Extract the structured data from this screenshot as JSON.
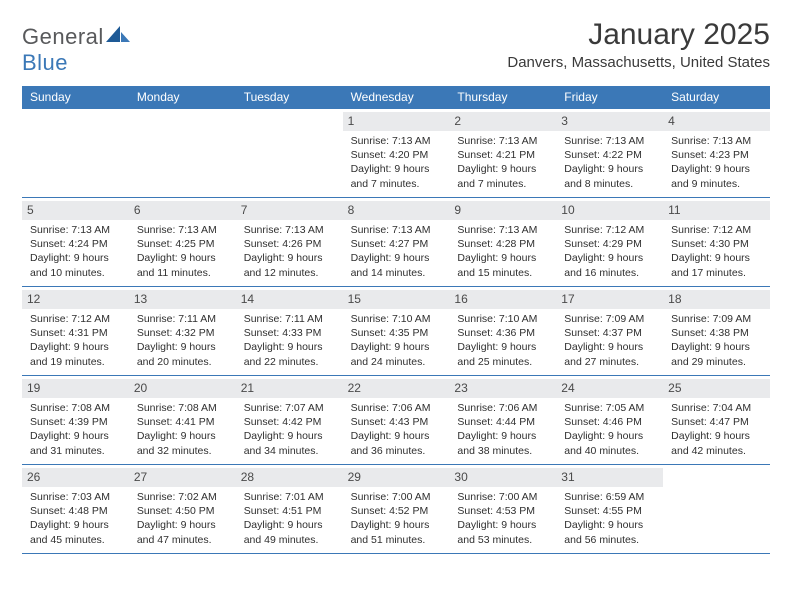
{
  "logo": {
    "text_general": "General",
    "text_blue": "Blue"
  },
  "title": "January 2025",
  "location": "Danvers, Massachusetts, United States",
  "colors": {
    "header_bg": "#3b78b7",
    "header_fg": "#ffffff",
    "daynum_bg": "#e9eaec",
    "text": "#333333",
    "rule": "#3b78b7"
  },
  "days_of_week": [
    "Sunday",
    "Monday",
    "Tuesday",
    "Wednesday",
    "Thursday",
    "Friday",
    "Saturday"
  ],
  "weeks": [
    [
      null,
      null,
      null,
      {
        "n": "1",
        "sr": "7:13 AM",
        "ss": "4:20 PM",
        "dl": "9 hours and 7 minutes."
      },
      {
        "n": "2",
        "sr": "7:13 AM",
        "ss": "4:21 PM",
        "dl": "9 hours and 7 minutes."
      },
      {
        "n": "3",
        "sr": "7:13 AM",
        "ss": "4:22 PM",
        "dl": "9 hours and 8 minutes."
      },
      {
        "n": "4",
        "sr": "7:13 AM",
        "ss": "4:23 PM",
        "dl": "9 hours and 9 minutes."
      }
    ],
    [
      {
        "n": "5",
        "sr": "7:13 AM",
        "ss": "4:24 PM",
        "dl": "9 hours and 10 minutes."
      },
      {
        "n": "6",
        "sr": "7:13 AM",
        "ss": "4:25 PM",
        "dl": "9 hours and 11 minutes."
      },
      {
        "n": "7",
        "sr": "7:13 AM",
        "ss": "4:26 PM",
        "dl": "9 hours and 12 minutes."
      },
      {
        "n": "8",
        "sr": "7:13 AM",
        "ss": "4:27 PM",
        "dl": "9 hours and 14 minutes."
      },
      {
        "n": "9",
        "sr": "7:13 AM",
        "ss": "4:28 PM",
        "dl": "9 hours and 15 minutes."
      },
      {
        "n": "10",
        "sr": "7:12 AM",
        "ss": "4:29 PM",
        "dl": "9 hours and 16 minutes."
      },
      {
        "n": "11",
        "sr": "7:12 AM",
        "ss": "4:30 PM",
        "dl": "9 hours and 17 minutes."
      }
    ],
    [
      {
        "n": "12",
        "sr": "7:12 AM",
        "ss": "4:31 PM",
        "dl": "9 hours and 19 minutes."
      },
      {
        "n": "13",
        "sr": "7:11 AM",
        "ss": "4:32 PM",
        "dl": "9 hours and 20 minutes."
      },
      {
        "n": "14",
        "sr": "7:11 AM",
        "ss": "4:33 PM",
        "dl": "9 hours and 22 minutes."
      },
      {
        "n": "15",
        "sr": "7:10 AM",
        "ss": "4:35 PM",
        "dl": "9 hours and 24 minutes."
      },
      {
        "n": "16",
        "sr": "7:10 AM",
        "ss": "4:36 PM",
        "dl": "9 hours and 25 minutes."
      },
      {
        "n": "17",
        "sr": "7:09 AM",
        "ss": "4:37 PM",
        "dl": "9 hours and 27 minutes."
      },
      {
        "n": "18",
        "sr": "7:09 AM",
        "ss": "4:38 PM",
        "dl": "9 hours and 29 minutes."
      }
    ],
    [
      {
        "n": "19",
        "sr": "7:08 AM",
        "ss": "4:39 PM",
        "dl": "9 hours and 31 minutes."
      },
      {
        "n": "20",
        "sr": "7:08 AM",
        "ss": "4:41 PM",
        "dl": "9 hours and 32 minutes."
      },
      {
        "n": "21",
        "sr": "7:07 AM",
        "ss": "4:42 PM",
        "dl": "9 hours and 34 minutes."
      },
      {
        "n": "22",
        "sr": "7:06 AM",
        "ss": "4:43 PM",
        "dl": "9 hours and 36 minutes."
      },
      {
        "n": "23",
        "sr": "7:06 AM",
        "ss": "4:44 PM",
        "dl": "9 hours and 38 minutes."
      },
      {
        "n": "24",
        "sr": "7:05 AM",
        "ss": "4:46 PM",
        "dl": "9 hours and 40 minutes."
      },
      {
        "n": "25",
        "sr": "7:04 AM",
        "ss": "4:47 PM",
        "dl": "9 hours and 42 minutes."
      }
    ],
    [
      {
        "n": "26",
        "sr": "7:03 AM",
        "ss": "4:48 PM",
        "dl": "9 hours and 45 minutes."
      },
      {
        "n": "27",
        "sr": "7:02 AM",
        "ss": "4:50 PM",
        "dl": "9 hours and 47 minutes."
      },
      {
        "n": "28",
        "sr": "7:01 AM",
        "ss": "4:51 PM",
        "dl": "9 hours and 49 minutes."
      },
      {
        "n": "29",
        "sr": "7:00 AM",
        "ss": "4:52 PM",
        "dl": "9 hours and 51 minutes."
      },
      {
        "n": "30",
        "sr": "7:00 AM",
        "ss": "4:53 PM",
        "dl": "9 hours and 53 minutes."
      },
      {
        "n": "31",
        "sr": "6:59 AM",
        "ss": "4:55 PM",
        "dl": "9 hours and 56 minutes."
      },
      null
    ]
  ],
  "labels": {
    "sunrise": "Sunrise:",
    "sunset": "Sunset:",
    "daylight": "Daylight:"
  }
}
